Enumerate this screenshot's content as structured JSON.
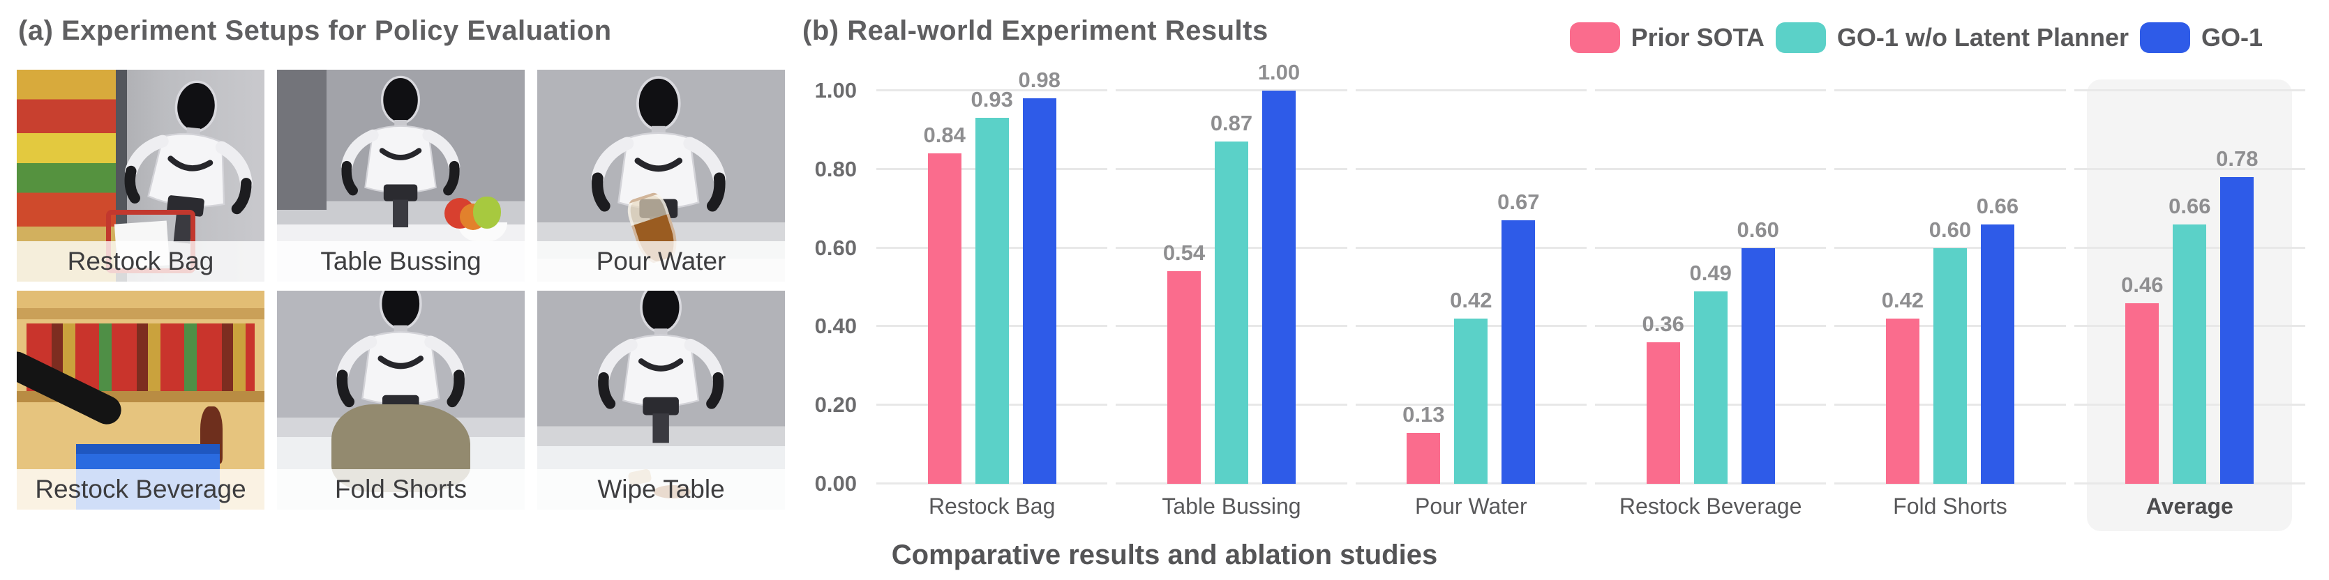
{
  "panel_a": {
    "title": "(a) Experiment Setups for Policy Evaluation",
    "photos": [
      {
        "label": "Restock Bag"
      },
      {
        "label": "Table Bussing"
      },
      {
        "label": "Pour Water"
      },
      {
        "label": "Restock Beverage"
      },
      {
        "label": "Fold Shorts"
      },
      {
        "label": "Wipe Table"
      }
    ]
  },
  "panel_b": {
    "title": "(b) Real-world Experiment Results",
    "caption": "Comparative results and ablation studies"
  },
  "chart_data": {
    "type": "bar",
    "title": "(b) Real-world Experiment Results",
    "categories": [
      "Restock Bag",
      "Table Bussing",
      "Pour Water",
      "Restock Beverage",
      "Fold Shorts",
      "Average"
    ],
    "series": [
      {
        "name": "Prior SOTA",
        "color": "#FA6C8D",
        "values": [
          0.84,
          0.54,
          0.13,
          0.36,
          0.42,
          0.46
        ]
      },
      {
        "name": "GO-1 w/o Latent Planner",
        "color": "#5BD1C8",
        "values": [
          0.93,
          0.87,
          0.42,
          0.49,
          0.6,
          0.66
        ]
      },
      {
        "name": "GO-1",
        "color": "#2E5BE8",
        "values": [
          0.98,
          1.0,
          0.67,
          0.6,
          0.66,
          0.78
        ]
      }
    ],
    "yticks": [
      "0.00",
      "0.20",
      "0.40",
      "0.60",
      "0.80",
      "1.00"
    ],
    "ylim": [
      0,
      1.0
    ],
    "grid": true,
    "gridline_color": "#E8E8E8",
    "legend_position": "top-right",
    "value_labels": "above-bars",
    "highlighted_category": "Average",
    "highlight_color": "rgba(128,128,128,0.085)"
  }
}
